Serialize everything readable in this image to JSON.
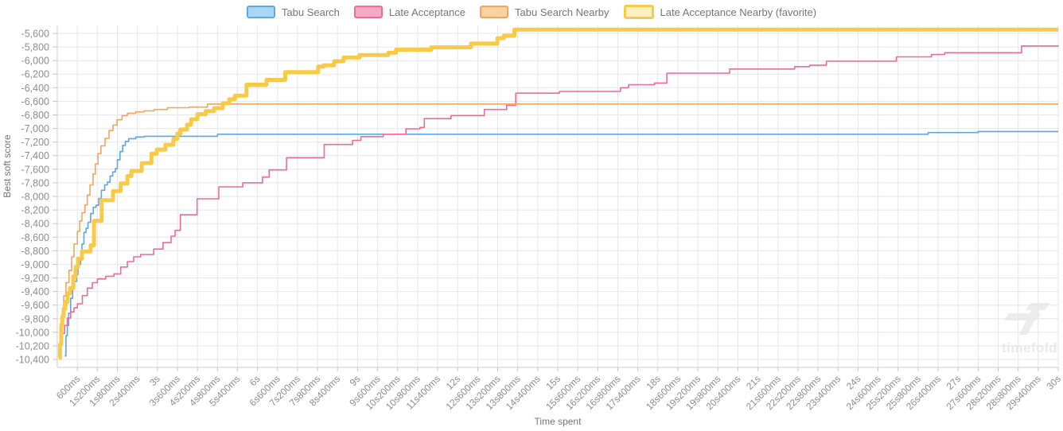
{
  "watermark": {
    "text": "timefold"
  },
  "chart_data": {
    "type": "line",
    "step": "after",
    "title": "",
    "xlabel": "Time spent",
    "ylabel": "Best soft score",
    "grid": true,
    "legend_position": "top-center",
    "xlim_seconds": [
      0,
      30
    ],
    "ylim": [
      -10400,
      -5600
    ],
    "y_tick_step": 200,
    "x_ticks_seconds": [
      0.6,
      1.2,
      1.8,
      2.4,
      3,
      3.6,
      4.2,
      4.8,
      5.4,
      6,
      6.6,
      7.2,
      7.8,
      8.4,
      9,
      9.6,
      10.2,
      10.8,
      11.4,
      12,
      12.6,
      13.2,
      13.8,
      14.4,
      15,
      15.6,
      16.2,
      16.8,
      17.4,
      18,
      18.6,
      19.2,
      19.8,
      20.4,
      21,
      21.6,
      22.2,
      22.8,
      23.4,
      24,
      24.6,
      25.2,
      25.8,
      26.4,
      27,
      27.6,
      28.2,
      28.8,
      29.4,
      30
    ],
    "x_tick_labels": [
      "600ms",
      "1s200ms",
      "1s800ms",
      "2s400ms",
      "3s",
      "3s600ms",
      "4s200ms",
      "4s800ms",
      "5s400ms",
      "6s",
      "6s600ms",
      "7s200ms",
      "7s800ms",
      "8s400ms",
      "9s",
      "9s600ms",
      "10s200ms",
      "10s800ms",
      "11s400ms",
      "12s",
      "12s600ms",
      "13s200ms",
      "13s800ms",
      "14s400ms",
      "15s",
      "15s600ms",
      "16s200ms",
      "16s800ms",
      "17s400ms",
      "18s",
      "18s600ms",
      "19s200ms",
      "19s800ms",
      "20s400ms",
      "21s",
      "21s600ms",
      "22s200ms",
      "22s800ms",
      "23s400ms",
      "24s",
      "24s600ms",
      "25s200ms",
      "25s800ms",
      "26s400ms",
      "27s",
      "27s600ms",
      "28s200ms",
      "28s800ms",
      "29s400ms",
      "30s"
    ],
    "y_ticks": [
      -5600,
      -5800,
      -6000,
      -6200,
      -6400,
      -6600,
      -6800,
      -7000,
      -7200,
      -7400,
      -7600,
      -7800,
      -8000,
      -8200,
      -8400,
      -8600,
      -8800,
      -9000,
      -9200,
      -9400,
      -9600,
      -9800,
      -10000,
      -10200,
      -10400
    ],
    "y_tick_labels": [
      "-5,600",
      "-5,800",
      "-6,000",
      "-6,200",
      "-6,400",
      "-6,600",
      "-6,800",
      "-7,000",
      "-7,200",
      "-7,400",
      "-7,600",
      "-7,800",
      "-8,000",
      "-8,200",
      "-8,400",
      "-8,600",
      "-8,800",
      "-9,000",
      "-9,200",
      "-9,400",
      "-9,600",
      "-9,800",
      "-10,000",
      "-10,200",
      "-10,400"
    ],
    "series": [
      {
        "name": "Tabu Search",
        "color": "#5ba7de",
        "legend_fill": "#a9d6f5",
        "line_width": 1.6,
        "favorite": false,
        "points": [
          [
            0.22,
            -10350
          ],
          [
            0.26,
            -10050
          ],
          [
            0.3,
            -9900
          ],
          [
            0.34,
            -9720
          ],
          [
            0.4,
            -9500
          ],
          [
            0.46,
            -9350
          ],
          [
            0.52,
            -9250
          ],
          [
            0.58,
            -9150
          ],
          [
            0.62,
            -9000
          ],
          [
            0.7,
            -8880
          ],
          [
            0.74,
            -8700
          ],
          [
            0.8,
            -8530
          ],
          [
            0.86,
            -8470
          ],
          [
            0.92,
            -8380
          ],
          [
            1.0,
            -8250
          ],
          [
            1.08,
            -8160
          ],
          [
            1.16,
            -8130
          ],
          [
            1.24,
            -8030
          ],
          [
            1.32,
            -7910
          ],
          [
            1.42,
            -7830
          ],
          [
            1.5,
            -7790
          ],
          [
            1.58,
            -7700
          ],
          [
            1.66,
            -7640
          ],
          [
            1.74,
            -7590
          ],
          [
            1.8,
            -7460
          ],
          [
            1.88,
            -7340
          ],
          [
            1.96,
            -7250
          ],
          [
            2.04,
            -7190
          ],
          [
            2.14,
            -7150
          ],
          [
            2.35,
            -7125
          ],
          [
            2.6,
            -7115
          ],
          [
            4.8,
            -7085
          ],
          [
            26.1,
            -7060
          ],
          [
            27.6,
            -7045
          ],
          [
            30,
            -7045
          ]
        ]
      },
      {
        "name": "Late Acceptance",
        "color": "#ef6a96",
        "legend_fill": "#f8a9c4",
        "line_width": 1.6,
        "favorite": false,
        "points": [
          [
            0.06,
            -10380
          ],
          [
            0.1,
            -10150
          ],
          [
            0.15,
            -10020
          ],
          [
            0.22,
            -9900
          ],
          [
            0.3,
            -9790
          ],
          [
            0.4,
            -9700
          ],
          [
            0.5,
            -9640
          ],
          [
            0.6,
            -9580
          ],
          [
            0.75,
            -9460
          ],
          [
            0.9,
            -9350
          ],
          [
            1.05,
            -9270
          ],
          [
            1.2,
            -9215
          ],
          [
            1.45,
            -9175
          ],
          [
            1.7,
            -9140
          ],
          [
            1.9,
            -9040
          ],
          [
            2.1,
            -8960
          ],
          [
            2.29,
            -8890
          ],
          [
            2.5,
            -8855
          ],
          [
            2.89,
            -8775
          ],
          [
            3.17,
            -8680
          ],
          [
            3.41,
            -8585
          ],
          [
            3.53,
            -8500
          ],
          [
            3.69,
            -8270
          ],
          [
            4.19,
            -8035
          ],
          [
            4.84,
            -7860
          ],
          [
            5.56,
            -7800
          ],
          [
            6.15,
            -7715
          ],
          [
            6.35,
            -7610
          ],
          [
            6.87,
            -7430
          ],
          [
            8.0,
            -7235
          ],
          [
            8.85,
            -7175
          ],
          [
            9.1,
            -7120
          ],
          [
            9.77,
            -7085
          ],
          [
            10.45,
            -7005
          ],
          [
            10.87,
            -6985
          ],
          [
            11.0,
            -6855
          ],
          [
            11.8,
            -6810
          ],
          [
            12.8,
            -6720
          ],
          [
            13.47,
            -6660
          ],
          [
            13.74,
            -6480
          ],
          [
            15.05,
            -6455
          ],
          [
            16.88,
            -6400
          ],
          [
            17.12,
            -6355
          ],
          [
            17.9,
            -6330
          ],
          [
            18.27,
            -6185
          ],
          [
            20.15,
            -6125
          ],
          [
            22.1,
            -6090
          ],
          [
            22.55,
            -6070
          ],
          [
            23.05,
            -6010
          ],
          [
            25.15,
            -5945
          ],
          [
            26.2,
            -5910
          ],
          [
            26.6,
            -5885
          ],
          [
            28.9,
            -5785
          ],
          [
            30,
            -5775
          ]
        ]
      },
      {
        "name": "Tabu Search Nearby",
        "color": "#f3a45d",
        "legend_fill": "#fad2a0",
        "line_width": 1.6,
        "favorite": false,
        "points": [
          [
            0.05,
            -10380
          ],
          [
            0.1,
            -9900
          ],
          [
            0.14,
            -9730
          ],
          [
            0.19,
            -9465
          ],
          [
            0.26,
            -9270
          ],
          [
            0.35,
            -9090
          ],
          [
            0.43,
            -8890
          ],
          [
            0.5,
            -8700
          ],
          [
            0.6,
            -8515
          ],
          [
            0.67,
            -8360
          ],
          [
            0.74,
            -8240
          ],
          [
            0.83,
            -8125
          ],
          [
            0.9,
            -7980
          ],
          [
            0.98,
            -7830
          ],
          [
            1.07,
            -7670
          ],
          [
            1.14,
            -7520
          ],
          [
            1.22,
            -7370
          ],
          [
            1.31,
            -7255
          ],
          [
            1.43,
            -7145
          ],
          [
            1.55,
            -7030
          ],
          [
            1.67,
            -6950
          ],
          [
            1.79,
            -6870
          ],
          [
            1.94,
            -6810
          ],
          [
            2.1,
            -6775
          ],
          [
            2.35,
            -6755
          ],
          [
            2.6,
            -6740
          ],
          [
            2.9,
            -6720
          ],
          [
            3.3,
            -6695
          ],
          [
            3.95,
            -6685
          ],
          [
            4.5,
            -6640
          ],
          [
            30,
            -6640
          ]
        ]
      },
      {
        "name": "Late Acceptance Nearby (favorite)",
        "color": "#f8ca49",
        "legend_fill": "#fdf1c4",
        "line_width": 5,
        "favorite": true,
        "points": [
          [
            0.05,
            -10380
          ],
          [
            0.08,
            -10180
          ],
          [
            0.12,
            -9890
          ],
          [
            0.15,
            -9770
          ],
          [
            0.19,
            -9655
          ],
          [
            0.24,
            -9555
          ],
          [
            0.31,
            -9430
          ],
          [
            0.38,
            -9350
          ],
          [
            0.48,
            -9175
          ],
          [
            0.55,
            -9040
          ],
          [
            0.62,
            -8915
          ],
          [
            0.74,
            -8810
          ],
          [
            1.0,
            -8720
          ],
          [
            1.1,
            -8360
          ],
          [
            1.33,
            -8055
          ],
          [
            1.67,
            -7920
          ],
          [
            1.9,
            -7810
          ],
          [
            2.1,
            -7700
          ],
          [
            2.22,
            -7625
          ],
          [
            2.53,
            -7510
          ],
          [
            2.82,
            -7370
          ],
          [
            2.98,
            -7310
          ],
          [
            3.24,
            -7240
          ],
          [
            3.48,
            -7155
          ],
          [
            3.6,
            -7075
          ],
          [
            3.69,
            -7015
          ],
          [
            3.89,
            -6945
          ],
          [
            4.01,
            -6865
          ],
          [
            4.2,
            -6790
          ],
          [
            4.45,
            -6745
          ],
          [
            4.7,
            -6700
          ],
          [
            4.96,
            -6630
          ],
          [
            5.15,
            -6570
          ],
          [
            5.32,
            -6515
          ],
          [
            5.67,
            -6355
          ],
          [
            6.27,
            -6285
          ],
          [
            6.83,
            -6170
          ],
          [
            7.82,
            -6090
          ],
          [
            7.98,
            -6070
          ],
          [
            8.3,
            -6010
          ],
          [
            8.58,
            -5955
          ],
          [
            9.06,
            -5920
          ],
          [
            9.92,
            -5885
          ],
          [
            10.15,
            -5840
          ],
          [
            11.21,
            -5805
          ],
          [
            12.4,
            -5750
          ],
          [
            13.19,
            -5670
          ],
          [
            13.38,
            -5635
          ],
          [
            13.7,
            -5545
          ],
          [
            30,
            -5545
          ]
        ]
      }
    ],
    "style": {
      "grid_color": "#e6e6e6",
      "axis_color": "#cccccc",
      "tick_color": "#c4c4c4",
      "tick_text_color": "#8d8d8d",
      "title_text_color": "#757575",
      "watermark_color": "#ececec"
    }
  }
}
